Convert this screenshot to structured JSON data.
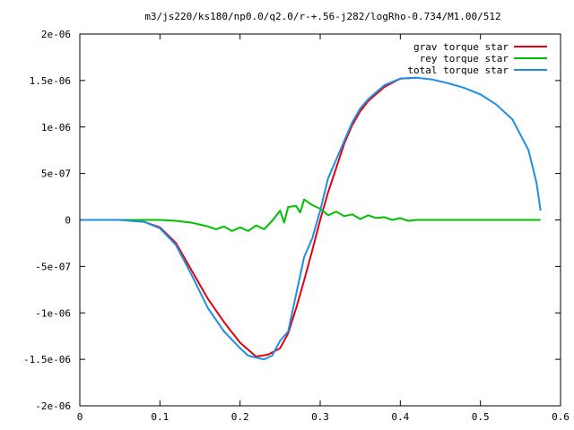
{
  "chart_data": {
    "type": "line",
    "title": "m3/js220/ks180/np0.0/q2.0/r-+.56-j282/logRho-0.734/M1.00/512",
    "xlabel": "",
    "ylabel": "",
    "xlim": [
      0,
      0.6
    ],
    "ylim": [
      -2e-06,
      2e-06
    ],
    "x_ticks": [
      0,
      0.1,
      0.2,
      0.3,
      0.4,
      0.5,
      0.6
    ],
    "x_tick_labels": [
      "0",
      "0.1",
      "0.2",
      "0.3",
      "0.4",
      "0.5",
      "0.6"
    ],
    "y_ticks": [
      -2e-06,
      -1.5e-06,
      -1e-06,
      -5e-07,
      0,
      5e-07,
      1e-06,
      1.5e-06,
      2e-06
    ],
    "y_tick_labels": [
      "-2e-06",
      "-1.5e-06",
      "-1e-06",
      "-5e-07",
      "0",
      "5e-07",
      "1e-06",
      "1.5e-06",
      "2e-06"
    ],
    "grid": false,
    "legend_position": "top-right",
    "series": [
      {
        "name": "grav torque star",
        "color": "#e8000b",
        "x": [
          0,
          0.05,
          0.08,
          0.1,
          0.12,
          0.14,
          0.16,
          0.18,
          0.2,
          0.22,
          0.235,
          0.25,
          0.26,
          0.27,
          0.28,
          0.29,
          0.3,
          0.31,
          0.32,
          0.33,
          0.34,
          0.35,
          0.36,
          0.38,
          0.4,
          0.42
        ],
        "y": [
          0,
          0,
          -2e-08,
          -8e-08,
          -2.5e-07,
          -5.5e-07,
          -8.5e-07,
          -1.1e-06,
          -1.32e-06,
          -1.47e-06,
          -1.45e-06,
          -1.38e-06,
          -1.22e-06,
          -9.5e-07,
          -6.5e-07,
          -3.3e-07,
          0,
          3e-07,
          5.6e-07,
          8.2e-07,
          1.02e-06,
          1.17e-06,
          1.28e-06,
          1.43e-06,
          1.52e-06,
          1.53e-06
        ]
      },
      {
        "name": "rey torque star",
        "color": "#00c000",
        "x": [
          0,
          0.08,
          0.1,
          0.12,
          0.14,
          0.16,
          0.17,
          0.18,
          0.19,
          0.2,
          0.21,
          0.22,
          0.23,
          0.24,
          0.25,
          0.255,
          0.26,
          0.27,
          0.275,
          0.28,
          0.29,
          0.3,
          0.31,
          0.32,
          0.33,
          0.34,
          0.35,
          0.36,
          0.37,
          0.38,
          0.39,
          0.4,
          0.41,
          0.42,
          0.45,
          0.5,
          0.55,
          0.575
        ],
        "y": [
          0,
          0,
          0,
          -1e-08,
          -3e-08,
          -7e-08,
          -1e-07,
          -7e-08,
          -1.2e-07,
          -8e-08,
          -1.2e-07,
          -6e-08,
          -1e-07,
          -1e-08,
          1e-07,
          -3e-08,
          1.4e-07,
          1.5e-07,
          8e-08,
          2.2e-07,
          1.6e-07,
          1.2e-07,
          5e-08,
          9e-08,
          4e-08,
          6e-08,
          1e-08,
          5e-08,
          2e-08,
          3e-08,
          0,
          2e-08,
          -1e-08,
          0,
          0,
          0,
          0,
          0
        ]
      },
      {
        "name": "total torque star",
        "color": "#1e8fe6",
        "x": [
          0,
          0.05,
          0.08,
          0.1,
          0.12,
          0.14,
          0.16,
          0.18,
          0.2,
          0.21,
          0.22,
          0.23,
          0.24,
          0.25,
          0.26,
          0.27,
          0.28,
          0.29,
          0.3,
          0.31,
          0.32,
          0.33,
          0.34,
          0.35,
          0.36,
          0.38,
          0.4,
          0.42,
          0.44,
          0.46,
          0.48,
          0.5,
          0.52,
          0.54,
          0.56,
          0.57,
          0.575
        ],
        "y": [
          0,
          0,
          -2e-08,
          -9e-08,
          -2.7e-07,
          -6e-07,
          -9.5e-07,
          -1.2e-06,
          -1.38e-06,
          -1.46e-06,
          -1.48e-06,
          -1.5e-06,
          -1.46e-06,
          -1.3e-06,
          -1.2e-06,
          -8e-07,
          -4e-07,
          -2e-07,
          1e-07,
          4.5e-07,
          6.5e-07,
          8.5e-07,
          1.05e-06,
          1.2e-06,
          1.3e-06,
          1.45e-06,
          1.52e-06,
          1.53e-06,
          1.51e-06,
          1.47e-06,
          1.42e-06,
          1.35e-06,
          1.24e-06,
          1.08e-06,
          7.5e-07,
          4e-07,
          1e-07
        ]
      }
    ]
  }
}
